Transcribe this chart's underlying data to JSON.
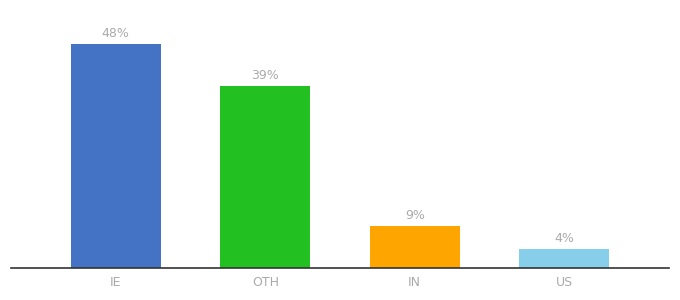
{
  "categories": [
    "IE",
    "OTH",
    "IN",
    "US"
  ],
  "values": [
    48,
    39,
    9,
    4
  ],
  "bar_colors": [
    "#4472C4",
    "#22C020",
    "#FFA500",
    "#87CEEB"
  ],
  "labels": [
    "48%",
    "39%",
    "9%",
    "4%"
  ],
  "ylim": [
    0,
    55
  ],
  "label_fontsize": 9,
  "tick_fontsize": 9,
  "bar_width": 0.6,
  "background_color": "#ffffff",
  "label_color": "#aaaaaa",
  "tick_color": "#aaaaaa",
  "bottom_spine_color": "#333333"
}
